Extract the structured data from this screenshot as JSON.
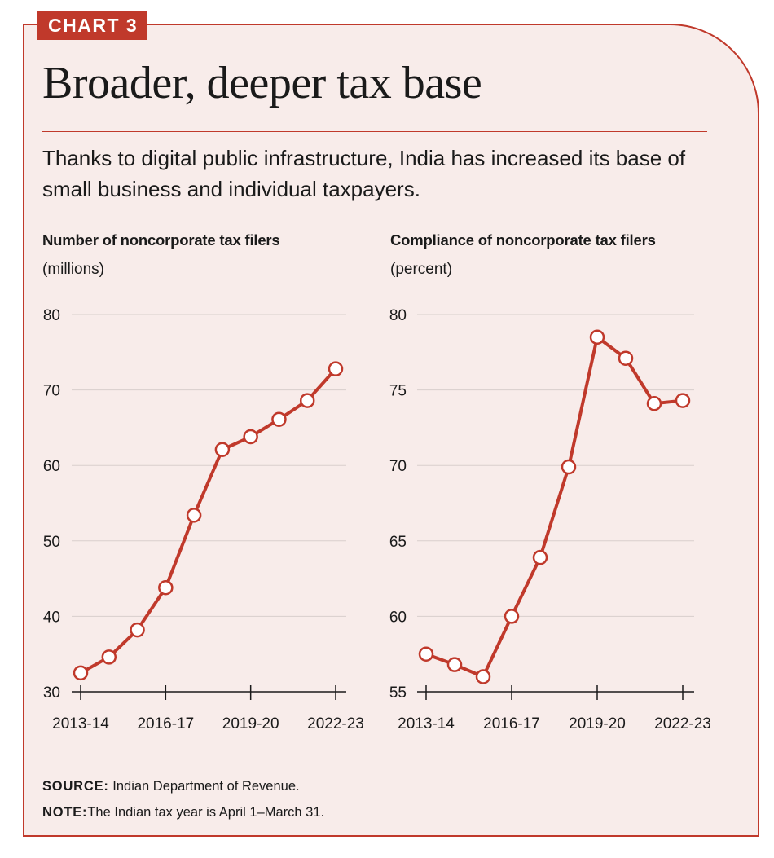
{
  "badge": "CHART 3",
  "title": "Broader, deeper tax base",
  "subtitle": "Thanks to digital public infrastructure, India has increased its base of small business and individual taxpayers.",
  "source": {
    "label": "SOURCE:",
    "text": " Indian Department of Revenue."
  },
  "note": {
    "label": "NOTE:",
    "text": "The Indian tax year is April 1–March 31."
  },
  "colors": {
    "accent": "#c0392b",
    "background": "#f8ecea",
    "text": "#1a1a1a",
    "grid": "#d9cfcc"
  },
  "chart_data": [
    {
      "type": "line",
      "title": "Number of noncorporate tax filers",
      "ylabel": "(millions)",
      "xlabel": "",
      "x": [
        "2013-14",
        "2014-15",
        "2015-16",
        "2016-17",
        "2017-18",
        "2018-19",
        "2019-20",
        "2020-21",
        "2021-22",
        "2022-23"
      ],
      "values": [
        32.5,
        34.6,
        38.2,
        43.8,
        53.4,
        62.1,
        63.8,
        66.1,
        68.6,
        72.8
      ],
      "ylim": [
        30,
        80
      ],
      "yticks": [
        "30",
        "40",
        "50",
        "60",
        "70",
        "80"
      ],
      "xtick_labels": [
        "2013-14",
        "2016-17",
        "2019-20",
        "2022-23"
      ],
      "grid": true
    },
    {
      "type": "line",
      "title": "Compliance of noncorporate tax filers",
      "ylabel": "(percent)",
      "xlabel": "",
      "x": [
        "2013-14",
        "2014-15",
        "2015-16",
        "2016-17",
        "2017-18",
        "2018-19",
        "2019-20",
        "2020-21",
        "2021-22",
        "2022-23"
      ],
      "values": [
        57.5,
        56.8,
        56.0,
        60.0,
        63.9,
        69.9,
        78.5,
        77.1,
        74.1,
        74.3
      ],
      "ylim": [
        55,
        80
      ],
      "yticks": [
        "55",
        "60",
        "65",
        "70",
        "75",
        "80"
      ],
      "xtick_labels": [
        "2013-14",
        "2016-17",
        "2019-20",
        "2022-23"
      ],
      "grid": true
    }
  ]
}
